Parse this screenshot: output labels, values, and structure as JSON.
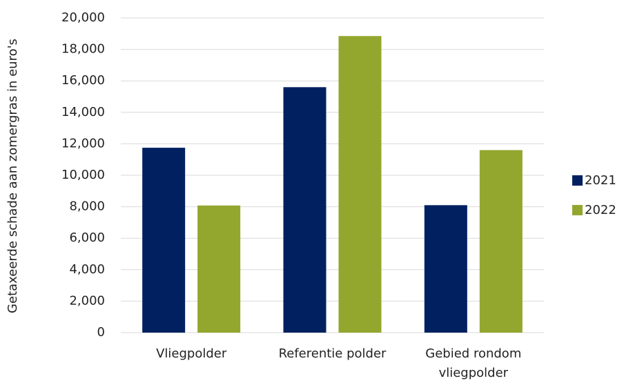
{
  "chart_data": {
    "type": "bar",
    "y_label": "Getaxeerde schade aan zomergras in euro's",
    "categories": [
      "Vliegpolder",
      "Referentie polder",
      "Gebied rondom vliegpolder"
    ],
    "series": [
      {
        "name": "2021",
        "color": "#002060",
        "values": [
          11750,
          15600,
          8100
        ]
      },
      {
        "name": "2022",
        "color": "#93a62e",
        "values": [
          8080,
          18850,
          11600
        ]
      }
    ],
    "ylim": [
      0,
      20000
    ],
    "yticks": [
      0,
      {
        "value": 2000,
        "label": "2,000"
      },
      {
        "value": 4000,
        "label": "4,000"
      },
      {
        "value": 6000,
        "label": "6,000"
      },
      {
        "value": 8000,
        "label": "8,000"
      },
      {
        "value": 10000,
        "label": "10,000"
      },
      {
        "value": 12000,
        "label": "12,000"
      },
      {
        "value": 14000,
        "label": "14,000"
      },
      {
        "value": 16000,
        "label": "16,000"
      },
      {
        "value": 18000,
        "label": "18,000"
      },
      {
        "value": 20000,
        "label": "20,000"
      }
    ],
    "grid": true,
    "legend": "right"
  }
}
